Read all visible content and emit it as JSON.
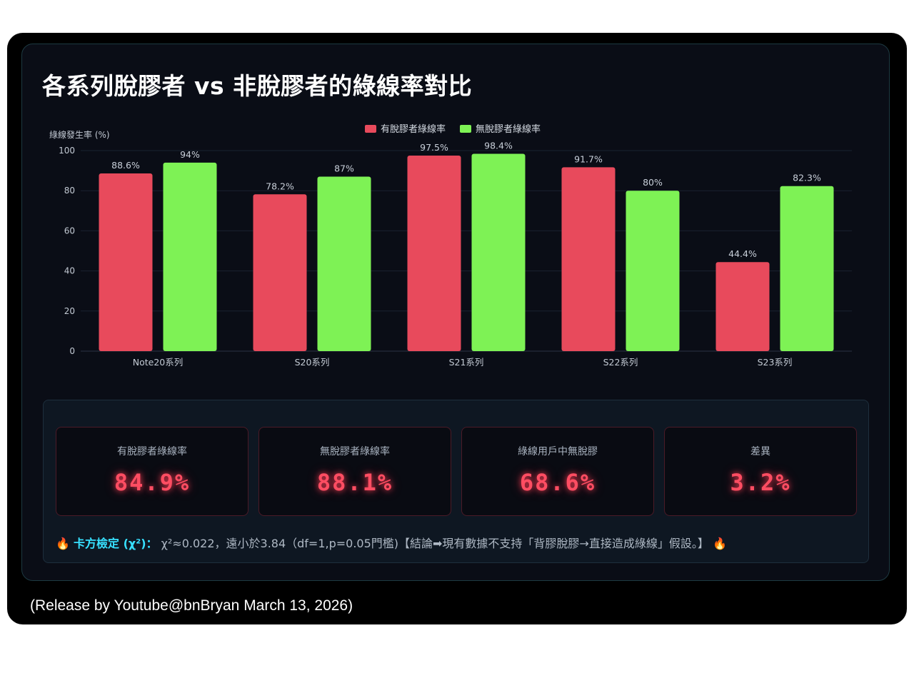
{
  "chart_data": {
    "type": "bar",
    "title": "各系列脫膠者 vs 非脫膠者的綠線率對比",
    "ylabel": "綠線發生率 (%)",
    "xlabel": "",
    "ylim": [
      0,
      100
    ],
    "yticks": [
      0,
      20,
      40,
      60,
      80,
      100
    ],
    "grid": true,
    "legend_position": "top-center",
    "categories": [
      "Note20系列",
      "S20系列",
      "S21系列",
      "S22系列",
      "S23系列"
    ],
    "series": [
      {
        "name": "有脫膠者綠線率",
        "color": "#e84a5c",
        "values": [
          88.6,
          78.2,
          97.5,
          91.7,
          44.4
        ],
        "labels": [
          "88.6%",
          "78.2%",
          "97.5%",
          "91.7%",
          "44.4%"
        ]
      },
      {
        "name": "無脫膠者綠線率",
        "color": "#7ef255",
        "values": [
          94,
          87,
          98.4,
          80,
          82.3
        ],
        "labels": [
          "94%",
          "87%",
          "98.4%",
          "80%",
          "82.3%"
        ]
      }
    ]
  },
  "stats": {
    "cards": [
      {
        "label": "有脫膠者綠線率",
        "value": "84.9%"
      },
      {
        "label": "無脫膠者綠線率",
        "value": "88.1%"
      },
      {
        "label": "綠線用戶中無脫膠",
        "value": "68.6%"
      },
      {
        "label": "差異",
        "value": "3.2%"
      }
    ],
    "note_icon": "🔥",
    "note_label": "卡方檢定 (χ²)：",
    "note_text": "χ²≈0.022，遠小於3.84（df=1,p=0.05門檻)【結論➡現有數據不支持「背膠脫膠→直接造成綠線」假設。】",
    "note_icon_end": "🔥"
  },
  "footer": "(Release by Youtube@bnBryan March 13, 2026)"
}
